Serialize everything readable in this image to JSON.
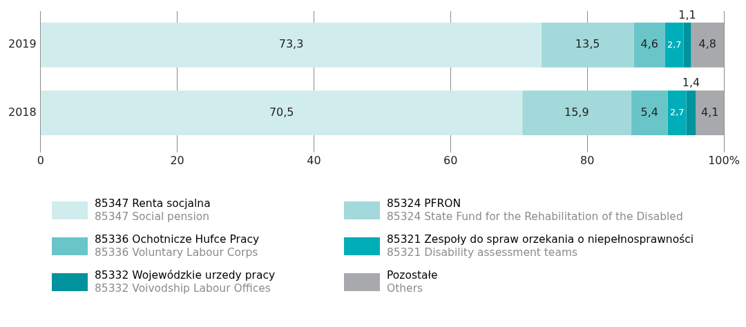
{
  "chart_data": {
    "type": "bar",
    "orientation": "horizontal",
    "stacked": true,
    "categories": [
      "2019",
      "2018"
    ],
    "series": [
      {
        "name": "85347 Renta socjalna\n85347 Social pension",
        "color": "#d0ecec",
        "values": [
          73.3,
          70.5
        ],
        "value_labels": [
          "73,3",
          "70,5"
        ]
      },
      {
        "name": "85324 PFRON\n85324 State Fund for the Rehabilitation of the Disabled",
        "color": "#a3d9db",
        "values": [
          13.5,
          15.9
        ],
        "value_labels": [
          "13,5",
          "15,9"
        ]
      },
      {
        "name": "85336 Ochotnicze Hufce Pracy\n85336 Voluntary Labour Corps",
        "color": "#6ac5c9",
        "values": [
          4.6,
          5.4
        ],
        "value_labels": [
          "4,6",
          "5,4"
        ]
      },
      {
        "name": "85321 Zespoły do spraw orzekania o niepełnosprawności\n85321 Disability assessment teams",
        "color": "#00aeb9",
        "values": [
          2.7,
          2.7
        ],
        "value_labels": [
          "2,7",
          "2,7"
        ]
      },
      {
        "name": "85332 Wojewódzkie urzedy pracy\n85332 Voivodship Labour Offices",
        "color": "#00939d",
        "values": [
          1.1,
          1.4
        ],
        "value_labels": [
          "1,1",
          "1,4"
        ]
      },
      {
        "name": "Pozostałe\nOthers",
        "color": "#a7a9ac",
        "values": [
          4.8,
          4.1
        ],
        "value_labels": [
          "4,8",
          "4,1"
        ]
      }
    ],
    "xlim": [
      0,
      100
    ],
    "xticks": [
      0,
      20,
      40,
      60,
      80,
      {
        "value": 100,
        "label": "100%"
      }
    ],
    "grid": "x",
    "legend": "bottom"
  }
}
